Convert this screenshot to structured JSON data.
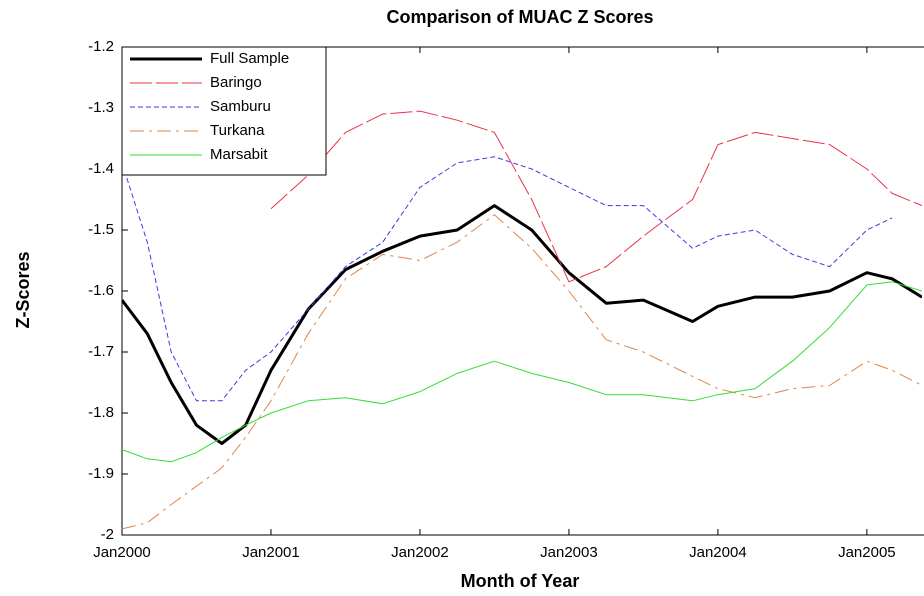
{
  "chart_data": {
    "type": "line",
    "title": "Comparison of MUAC Z Scores",
    "x_label": "Month of Year",
    "y_label": "Z-Scores",
    "x": [
      2000,
      2000.17,
      2000.33,
      2000.5,
      2000.67,
      2000.83,
      2001,
      2001.25,
      2001.5,
      2001.75,
      2002,
      2002.25,
      2002.5,
      2002.75,
      2003,
      2003.25,
      2003.5,
      2003.83,
      2004,
      2004.25,
      2004.5,
      2004.75,
      2005,
      2005.17,
      2005.37
    ],
    "series": [
      {
        "name": "Full Sample",
        "color": "#000000",
        "linestyle": "solid",
        "linewidth": 3,
        "values": [
          -1.615,
          -1.67,
          -1.75,
          -1.82,
          -1.85,
          -1.82,
          -1.73,
          -1.63,
          -1.565,
          -1.535,
          -1.51,
          -1.5,
          -1.46,
          -1.5,
          -1.57,
          -1.62,
          -1.615,
          -1.65,
          -1.625,
          -1.61,
          -1.61,
          -1.6,
          -1.57,
          -1.58,
          -1.61
        ]
      },
      {
        "name": "Baringo",
        "color": "#e8334a",
        "linestyle": "longdash",
        "linewidth": 1,
        "values": [
          null,
          null,
          null,
          null,
          null,
          null,
          -1.465,
          -1.41,
          -1.34,
          -1.31,
          -1.305,
          -1.32,
          -1.34,
          -1.45,
          -1.585,
          -1.56,
          -1.51,
          -1.45,
          -1.36,
          -1.34,
          -1.35,
          -1.36,
          -1.4,
          -1.44,
          -1.46
        ]
      },
      {
        "name": "Samburu",
        "color": "#3b3bdc",
        "linestyle": "dashed",
        "linewidth": 1,
        "values": [
          -1.39,
          -1.52,
          -1.7,
          -1.78,
          -1.78,
          -1.73,
          -1.7,
          -1.63,
          -1.56,
          -1.52,
          -1.43,
          -1.39,
          -1.38,
          -1.4,
          -1.43,
          -1.46,
          -1.46,
          -1.53,
          -1.51,
          -1.5,
          -1.54,
          -1.56,
          -1.5,
          -1.48,
          null
        ]
      },
      {
        "name": "Turkana",
        "color": "#e0864a",
        "linestyle": "dashdot",
        "linewidth": 1,
        "values": [
          -1.99,
          -1.98,
          -1.95,
          -1.92,
          -1.89,
          -1.84,
          -1.78,
          -1.67,
          -1.58,
          -1.54,
          -1.55,
          -1.52,
          -1.475,
          -1.53,
          -1.6,
          -1.68,
          -1.7,
          -1.74,
          -1.76,
          -1.775,
          -1.76,
          -1.755,
          -1.715,
          -1.73,
          -1.755
        ]
      },
      {
        "name": "Marsabit",
        "color": "#33dd33",
        "linestyle": "solid",
        "linewidth": 1,
        "values": [
          -1.86,
          -1.875,
          -1.88,
          -1.865,
          -1.84,
          -1.82,
          -1.8,
          -1.78,
          -1.775,
          -1.785,
          -1.765,
          -1.735,
          -1.715,
          -1.735,
          -1.75,
          -1.77,
          -1.77,
          -1.78,
          -1.77,
          -1.76,
          -1.715,
          -1.66,
          -1.59,
          -1.585,
          -1.6
        ]
      }
    ],
    "xlim": [
      2000,
      2005.37
    ],
    "xticks": [
      {
        "value": 2000,
        "label": "Jan2000"
      },
      {
        "value": 2001,
        "label": "Jan2001"
      },
      {
        "value": 2002,
        "label": "Jan2002"
      },
      {
        "value": 2003,
        "label": "Jan2003"
      },
      {
        "value": 2004,
        "label": "Jan2004"
      },
      {
        "value": 2005,
        "label": "Jan2005"
      }
    ],
    "ylim": [
      -2,
      -1.2
    ],
    "yticks": [
      -2,
      -1.9,
      -1.8,
      -1.7,
      -1.6,
      -1.5,
      -1.4,
      -1.3,
      -1.2
    ],
    "legend": "upper left",
    "grid": false
  }
}
